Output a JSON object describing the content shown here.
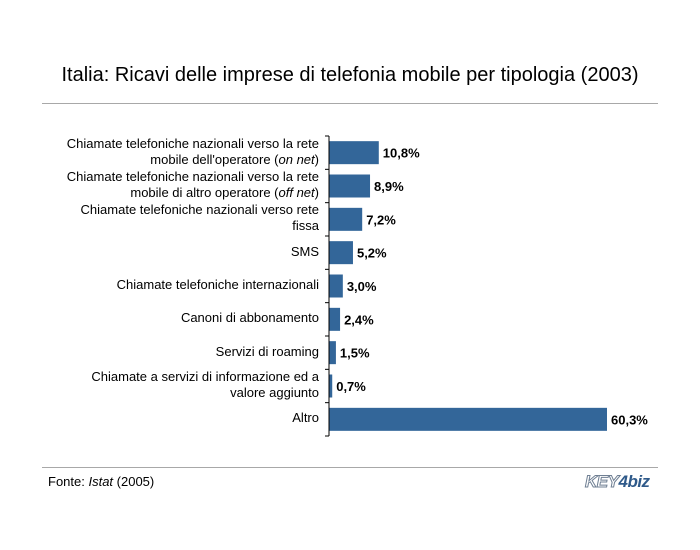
{
  "title": "Italia: Ricavi delle imprese di telefonia mobile per tipologia (2003)",
  "source": {
    "prefix": "Fonte: ",
    "name": "Istat",
    "suffix": " (2005)"
  },
  "logo": {
    "key": "KEY",
    "four": "4",
    "biz": "biz"
  },
  "colors": {
    "bar": "#336699",
    "rule": "#a8a8a8"
  },
  "chart_data": {
    "type": "bar",
    "orientation": "horizontal",
    "categories": [
      {
        "lines": [
          [
            {
              "t": "Chiamate telefoniche nazionali verso la rete"
            }
          ],
          [
            {
              "t": "mobile dell'operatore ("
            },
            {
              "t": "on net",
              "i": true
            },
            {
              "t": ")"
            }
          ]
        ]
      },
      {
        "lines": [
          [
            {
              "t": "Chiamate telefoniche nazionali verso la rete"
            }
          ],
          [
            {
              "t": "mobile di altro operatore ("
            },
            {
              "t": "off net",
              "i": true
            },
            {
              "t": ")"
            }
          ]
        ]
      },
      {
        "lines": [
          [
            {
              "t": "Chiamate telefoniche nazionali verso rete"
            }
          ],
          [
            {
              "t": "fissa"
            }
          ]
        ]
      },
      {
        "lines": [
          [
            {
              "t": "SMS"
            }
          ]
        ]
      },
      {
        "lines": [
          [
            {
              "t": "Chiamate telefoniche internazionali"
            }
          ]
        ]
      },
      {
        "lines": [
          [
            {
              "t": "Canoni di abbonamento"
            }
          ]
        ]
      },
      {
        "lines": [
          [
            {
              "t": "Servizi di roaming"
            }
          ]
        ]
      },
      {
        "lines": [
          [
            {
              "t": "Chiamate a servizi di informazione ed a"
            }
          ],
          [
            {
              "t": "valore aggiunto"
            }
          ]
        ]
      },
      {
        "lines": [
          [
            {
              "t": "Altro"
            }
          ]
        ]
      }
    ],
    "values": [
      10.8,
      8.9,
      7.2,
      5.2,
      3.0,
      2.4,
      1.5,
      0.7,
      60.3
    ],
    "value_labels": [
      "10,8%",
      "8,9%",
      "7,2%",
      "5,2%",
      "3,0%",
      "2,4%",
      "1,5%",
      "0,7%",
      "60,3%"
    ],
    "xlim": [
      0,
      60.3
    ],
    "grid": false,
    "legend": "none"
  }
}
